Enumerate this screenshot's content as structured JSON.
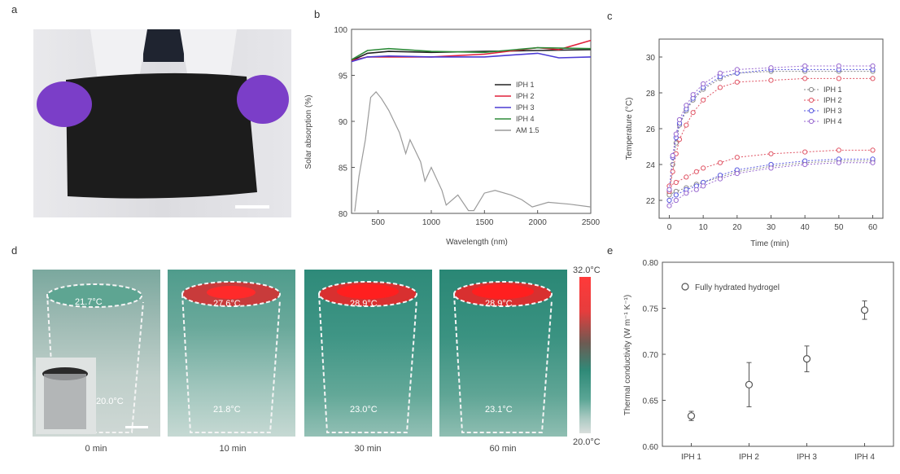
{
  "panels": {
    "a": "a",
    "b": "b",
    "c": "c",
    "d": "d",
    "e": "e"
  },
  "panel_b": {
    "ylabel": "Solar absorption (%)",
    "xlabel": "Wavelength (nm)",
    "legend": [
      "IPH 1",
      "IPH 2",
      "IPH 3",
      "IPH 4",
      "AM 1.5"
    ]
  },
  "panel_c": {
    "ylabel": "Temperature (°C)",
    "xlabel": "Time (min)",
    "legend": [
      "IPH 1",
      "IPH 2",
      "IPH 3",
      "IPH 4"
    ]
  },
  "panel_d": {
    "captions": [
      "0 min",
      "10 min",
      "30 min",
      "60 min"
    ],
    "top_temps": [
      "21.7°C",
      "27.6°C",
      "28.9°C",
      "28.9°C"
    ],
    "bottom_temps": [
      "20.0°C",
      "21.8°C",
      "23.0°C",
      "23.1°C"
    ],
    "colorbar_max": "32.0°C",
    "colorbar_min": "20.0°C"
  },
  "panel_e": {
    "ylabel": "Thermal conductivity (W m⁻¹ K⁻¹)",
    "legend": "Fully hydrated hydrogel"
  },
  "chart_data": [
    {
      "type": "line",
      "xlabel": "Wavelength (nm)",
      "ylabel": "Solar absorption (%)",
      "xlim": [
        250,
        2500
      ],
      "ylim": [
        80,
        100
      ],
      "xticks": [
        500,
        1000,
        1500,
        2000,
        2500
      ],
      "yticks": [
        80,
        85,
        90,
        95,
        100
      ],
      "series": [
        {
          "name": "IPH 1",
          "color": "#222222",
          "x": [
            250,
            400,
            600,
            1000,
            1500,
            2000,
            2500
          ],
          "y": [
            96.6,
            97.4,
            97.6,
            97.5,
            97.6,
            97.7,
            97.8
          ]
        },
        {
          "name": "IPH 2",
          "color": "#e0203a",
          "x": [
            250,
            400,
            600,
            1000,
            1500,
            2000,
            2200,
            2500
          ],
          "y": [
            96.6,
            97.0,
            97.0,
            97.0,
            97.3,
            98.0,
            97.8,
            98.8
          ]
        },
        {
          "name": "IPH 3",
          "color": "#4b3bd4",
          "x": [
            250,
            400,
            600,
            1000,
            1500,
            2000,
            2200,
            2500
          ],
          "y": [
            96.5,
            97.0,
            97.1,
            97.0,
            97.0,
            97.4,
            96.9,
            97.0
          ]
        },
        {
          "name": "IPH 4",
          "color": "#2e8b3a",
          "x": [
            250,
            400,
            600,
            1000,
            1500,
            2000,
            2500
          ],
          "y": [
            96.7,
            97.7,
            97.9,
            97.6,
            97.5,
            98.0,
            97.9
          ]
        },
        {
          "name": "AM 1.5",
          "color": "#9a9a9a",
          "x": [
            280,
            320,
            380,
            430,
            480,
            530,
            600,
            700,
            760,
            800,
            900,
            940,
            1000,
            1100,
            1140,
            1250,
            1350,
            1400,
            1500,
            1600,
            1750,
            1850,
            1950,
            2100,
            2300,
            2500
          ],
          "y": [
            80.2,
            84.0,
            88.0,
            92.6,
            93.2,
            92.5,
            91.2,
            88.8,
            86.5,
            88.0,
            85.6,
            83.5,
            85.0,
            82.5,
            80.9,
            82.0,
            80.3,
            80.3,
            82.2,
            82.5,
            82.0,
            81.5,
            80.7,
            81.2,
            81.0,
            80.7
          ]
        }
      ]
    },
    {
      "type": "scatter",
      "xlabel": "Time (min)",
      "ylabel": "Temperature (°C)",
      "xlim": [
        -3,
        63
      ],
      "ylim": [
        21,
        31
      ],
      "xticks": [
        0,
        10,
        20,
        30,
        40,
        50,
        60
      ],
      "yticks": [
        22,
        24,
        26,
        28,
        30
      ],
      "series": [
        {
          "name": "IPH 1",
          "color": "#8a8a8a",
          "top_x": [
            0,
            1,
            2,
            3,
            5,
            7,
            10,
            15,
            20,
            30,
            40,
            50,
            60
          ],
          "top_y": [
            22.4,
            24.0,
            25.2,
            26.2,
            27.0,
            27.6,
            28.2,
            28.8,
            29.1,
            29.2,
            29.2,
            29.2,
            29.2
          ],
          "bottom_x": [
            0,
            2,
            5,
            8,
            10,
            15,
            20,
            30,
            40,
            50,
            60
          ],
          "bottom_y": [
            22.3,
            22.5,
            22.7,
            22.9,
            23.0,
            23.3,
            23.6,
            23.9,
            24.1,
            24.2,
            24.2
          ]
        },
        {
          "name": "IPH 2",
          "color": "#e05565",
          "top_x": [
            0,
            1,
            2,
            3,
            5,
            7,
            10,
            15,
            20,
            30,
            40,
            50,
            60
          ],
          "top_y": [
            22.5,
            23.6,
            24.6,
            25.4,
            26.2,
            26.9,
            27.6,
            28.3,
            28.6,
            28.7,
            28.8,
            28.8,
            28.8
          ],
          "bottom_x": [
            0,
            2,
            5,
            8,
            10,
            15,
            20,
            30,
            40,
            50,
            60
          ],
          "bottom_y": [
            22.8,
            23.0,
            23.3,
            23.6,
            23.8,
            24.1,
            24.4,
            24.6,
            24.7,
            24.8,
            24.8
          ]
        },
        {
          "name": "IPH 3",
          "color": "#5a5ae0",
          "top_x": [
            0,
            1,
            2,
            3,
            5,
            7,
            10,
            15,
            20,
            30,
            40,
            50,
            60
          ],
          "top_y": [
            22.6,
            24.4,
            25.5,
            26.3,
            27.1,
            27.7,
            28.3,
            28.9,
            29.1,
            29.3,
            29.3,
            29.3,
            29.3
          ],
          "bottom_x": [
            0,
            2,
            5,
            8,
            10,
            15,
            20,
            30,
            40,
            50,
            60
          ],
          "bottom_y": [
            22.0,
            22.3,
            22.6,
            22.8,
            23.0,
            23.4,
            23.7,
            24.0,
            24.2,
            24.3,
            24.3
          ]
        },
        {
          "name": "IPH 4",
          "color": "#9a6ad0",
          "top_x": [
            0,
            1,
            2,
            3,
            5,
            7,
            10,
            15,
            20,
            30,
            40,
            50,
            60
          ],
          "top_y": [
            22.6,
            24.5,
            25.7,
            26.5,
            27.3,
            27.9,
            28.5,
            29.1,
            29.3,
            29.4,
            29.5,
            29.5,
            29.5
          ],
          "bottom_x": [
            0,
            2,
            5,
            8,
            10,
            15,
            20,
            30,
            40,
            50,
            60
          ],
          "bottom_y": [
            21.7,
            22.0,
            22.4,
            22.6,
            22.8,
            23.2,
            23.5,
            23.8,
            24.0,
            24.1,
            24.1
          ]
        }
      ]
    },
    {
      "type": "scatter",
      "ylabel": "Thermal conductivity (W m⁻¹ K⁻¹)",
      "ylim": [
        0.6,
        0.8
      ],
      "yticks": [
        0.6,
        0.65,
        0.7,
        0.75,
        0.8
      ],
      "categories": [
        "IPH 1",
        "IPH 2",
        "IPH 3",
        "IPH 4"
      ],
      "series": [
        {
          "name": "Fully hydrated hydrogel",
          "values": [
            0.633,
            0.667,
            0.695,
            0.748
          ],
          "errors": [
            0.005,
            0.024,
            0.014,
            0.01
          ]
        }
      ]
    }
  ]
}
